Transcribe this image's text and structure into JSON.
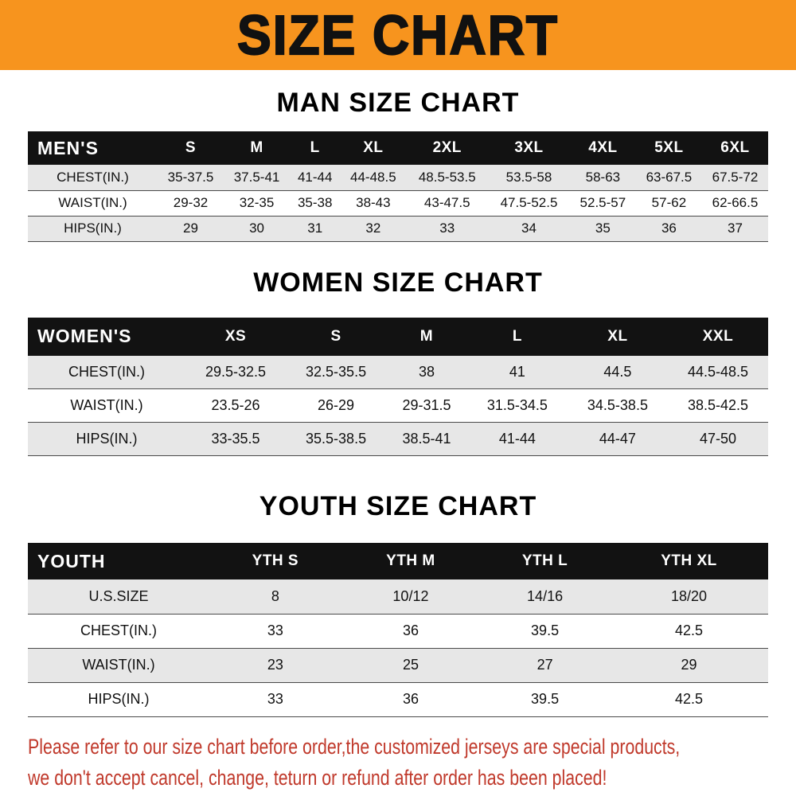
{
  "banner": {
    "title": "SIZE CHART"
  },
  "chart_data": [
    {
      "type": "table",
      "title": "MAN SIZE CHART",
      "label": "MEN'S",
      "columns": [
        "S",
        "M",
        "L",
        "XL",
        "2XL",
        "3XL",
        "4XL",
        "5XL",
        "6XL"
      ],
      "rows": [
        {
          "label": "CHEST(IN.)",
          "values": [
            "35-37.5",
            "37.5-41",
            "41-44",
            "44-48.5",
            "48.5-53.5",
            "53.5-58",
            "58-63",
            "63-67.5",
            "67.5-72"
          ]
        },
        {
          "label": "WAIST(IN.)",
          "values": [
            "29-32",
            "32-35",
            "35-38",
            "38-43",
            "43-47.5",
            "47.5-52.5",
            "52.5-57",
            "57-62",
            "62-66.5"
          ]
        },
        {
          "label": "HIPS(IN.)",
          "values": [
            "29",
            "30",
            "31",
            "32",
            "33",
            "34",
            "35",
            "36",
            "37"
          ]
        }
      ]
    },
    {
      "type": "table",
      "title": "WOMEN SIZE CHART",
      "label": "WOMEN'S",
      "columns": [
        "XS",
        "S",
        "M",
        "L",
        "XL",
        "XXL"
      ],
      "rows": [
        {
          "label": "CHEST(IN.)",
          "values": [
            "29.5-32.5",
            "32.5-35.5",
            "38",
            "41",
            "44.5",
            "44.5-48.5"
          ]
        },
        {
          "label": "WAIST(IN.)",
          "values": [
            "23.5-26",
            "26-29",
            "29-31.5",
            "31.5-34.5",
            "34.5-38.5",
            "38.5-42.5"
          ]
        },
        {
          "label": "HIPS(IN.)",
          "values": [
            "33-35.5",
            "35.5-38.5",
            "38.5-41",
            "41-44",
            "44-47",
            "47-50"
          ]
        }
      ]
    },
    {
      "type": "table",
      "title": "YOUTH SIZE CHART",
      "label": "YOUTH",
      "columns": [
        "YTH S",
        "YTH M",
        "YTH L",
        "YTH XL"
      ],
      "rows": [
        {
          "label": "U.S.SIZE",
          "values": [
            "8",
            "10/12",
            "14/16",
            "18/20"
          ]
        },
        {
          "label": "CHEST(IN.)",
          "values": [
            "33",
            "36",
            "39.5",
            "42.5"
          ]
        },
        {
          "label": "WAIST(IN.)",
          "values": [
            "23",
            "25",
            "27",
            "29"
          ]
        },
        {
          "label": "HIPS(IN.)",
          "values": [
            "33",
            "36",
            "39.5",
            "42.5"
          ]
        }
      ]
    }
  ],
  "footer": {
    "lines": [
      "Please refer to our size chart before order,the customized jerseys are special products,",
      "we don't accept cancel, change, teturn or refund after order has been placed!"
    ]
  },
  "colors": {
    "banner_bg": "#F7941E",
    "banner_text": "#111111",
    "table_header_bg": "#121212",
    "table_header_text": "#FFFFFF",
    "row_alt_bg": "#E7E7E7",
    "row_bg": "#FFFFFF",
    "row_border": "#4A4A4A",
    "footer_text": "#C0392B"
  }
}
